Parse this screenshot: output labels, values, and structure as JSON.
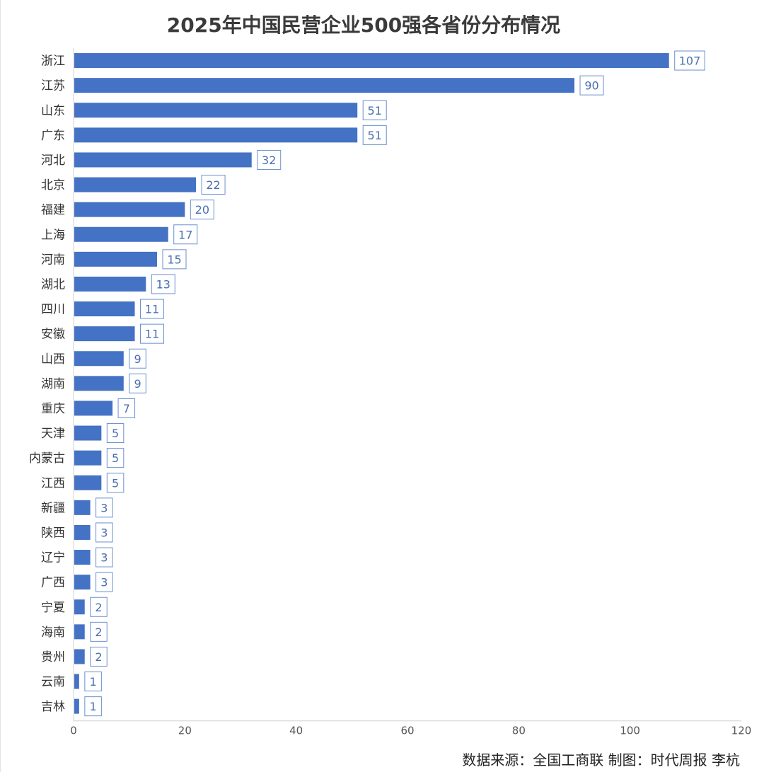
{
  "chart_data": {
    "type": "bar",
    "orientation": "horizontal",
    "title": "2025年中国民营企业500强各省份分布情况",
    "categories": [
      "浙江",
      "江苏",
      "山东",
      "广东",
      "河北",
      "北京",
      "福建",
      "上海",
      "河南",
      "湖北",
      "四川",
      "安徽",
      "山西",
      "湖南",
      "重庆",
      "天津",
      "内蒙古",
      "江西",
      "新疆",
      "陕西",
      "辽宁",
      "广西",
      "宁夏",
      "海南",
      "贵州",
      "云南",
      "吉林"
    ],
    "values": [
      107,
      90,
      51,
      51,
      32,
      22,
      20,
      17,
      15,
      13,
      11,
      11,
      9,
      9,
      7,
      5,
      5,
      5,
      3,
      3,
      3,
      3,
      2,
      2,
      2,
      1,
      1
    ],
    "xlim": [
      0,
      120
    ],
    "xticks": [
      0,
      20,
      40,
      60,
      80,
      100,
      120
    ],
    "xlabel": "",
    "ylabel": "",
    "grid": false,
    "legend": "none",
    "data_labels": true,
    "colors": {
      "bar": "#4472c4",
      "label_border": "#6a8fcf",
      "label_text": "#4a6fae",
      "axis": "#d0d0d0",
      "tick_text": "#555555",
      "category_text": "#333333"
    }
  },
  "footer": {
    "source": "数据来源：全国工商联 制图：时代周报 李杭"
  }
}
